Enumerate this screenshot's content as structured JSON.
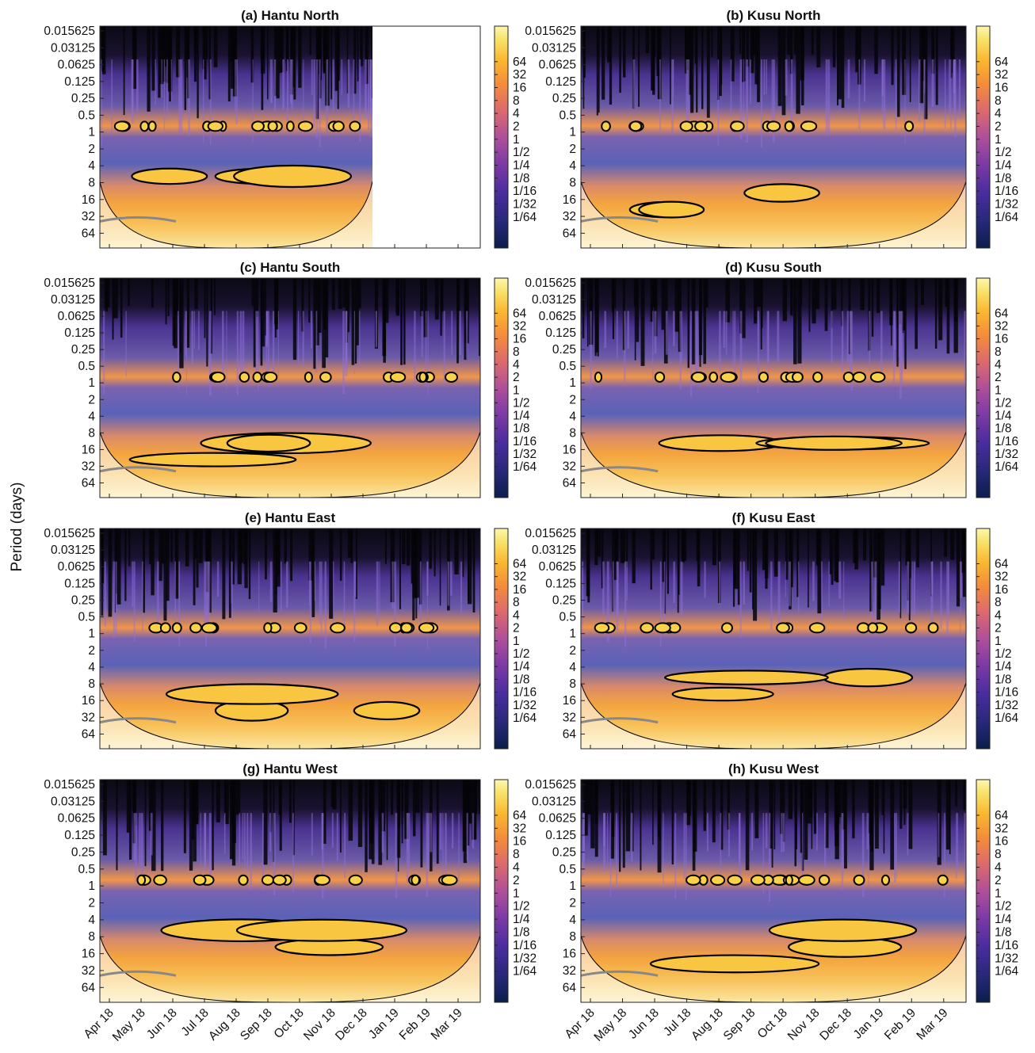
{
  "figure": {
    "ylabel": "Period (days)",
    "xticks": [
      "Apr 18",
      "May 18",
      "Jun 18",
      "Jul 18",
      "Aug 18",
      "Sep 18",
      "Oct 18",
      "Nov 18",
      "Dec 18",
      "Jan 19",
      "Feb 19",
      "Mar 19"
    ],
    "yticks": [
      "0.015625",
      "0.03125",
      "0.0625",
      "0.125",
      "0.25",
      "0.5",
      "1",
      "2",
      "4",
      "8",
      "16",
      "32",
      "64"
    ],
    "colorbar_ticks": [
      "64",
      "32",
      "16",
      "8",
      "4",
      "2",
      "1",
      "1/2",
      "1/4",
      "1/8",
      "1/16",
      "1/32",
      "1/64"
    ],
    "colormap": [
      "#0b1d4d",
      "#27287a",
      "#4a2c9e",
      "#7d3aa6",
      "#b04f9a",
      "#dc6a6c",
      "#f48d3a",
      "#fbb830",
      "#f7e36a",
      "#fdf7b0"
    ]
  },
  "chart_data": [
    {
      "type": "heatmap",
      "title": "(a) Hantu North",
      "ylabel": "Period (days)",
      "x_range": [
        "Apr 18",
        "Mar 19"
      ],
      "data_end": "Dec 18",
      "y_range": [
        0.015625,
        64
      ],
      "y_scale": "log2",
      "power_scale": "log2",
      "contour": "significance"
    },
    {
      "type": "heatmap",
      "title": "(b) Kusu North",
      "ylabel": "Period (days)",
      "x_range": [
        "Apr 18",
        "Mar 19"
      ],
      "data_end": "Mar 19",
      "y_range": [
        0.015625,
        64
      ],
      "y_scale": "log2",
      "power_scale": "log2",
      "contour": "significance"
    },
    {
      "type": "heatmap",
      "title": "(c) Hantu South",
      "ylabel": "Period (days)",
      "x_range": [
        "Apr 18",
        "Mar 19"
      ],
      "data_end": "Mar 19",
      "y_range": [
        0.015625,
        64
      ],
      "y_scale": "log2",
      "power_scale": "log2",
      "contour": "significance"
    },
    {
      "type": "heatmap",
      "title": "(d) Kusu South",
      "ylabel": "Period (days)",
      "x_range": [
        "Apr 18",
        "Mar 19"
      ],
      "data_end": "Mar 19",
      "y_range": [
        0.015625,
        64
      ],
      "y_scale": "log2",
      "power_scale": "log2",
      "contour": "significance"
    },
    {
      "type": "heatmap",
      "title": "(e) Hantu East",
      "ylabel": "Period (days)",
      "x_range": [
        "Apr 18",
        "Mar 19"
      ],
      "data_end": "Mar 19",
      "y_range": [
        0.015625,
        64
      ],
      "y_scale": "log2",
      "power_scale": "log2",
      "contour": "significance"
    },
    {
      "type": "heatmap",
      "title": "(f) Kusu East",
      "ylabel": "Period (days)",
      "x_range": [
        "Apr 18",
        "Mar 19"
      ],
      "data_end": "Mar 19",
      "y_range": [
        0.015625,
        64
      ],
      "y_scale": "log2",
      "power_scale": "log2",
      "contour": "significance"
    },
    {
      "type": "heatmap",
      "title": "(g) Hantu West",
      "ylabel": "Period (days)",
      "x_range": [
        "Apr 18",
        "Mar 19"
      ],
      "data_end": "Mar 19",
      "y_range": [
        0.015625,
        64
      ],
      "y_scale": "log2",
      "power_scale": "log2",
      "contour": "significance"
    },
    {
      "type": "heatmap",
      "title": "(h) Kusu West",
      "ylabel": "Period (days)",
      "x_range": [
        "Apr 18",
        "Mar 19"
      ],
      "data_end": "Mar 19",
      "y_range": [
        0.015625,
        64
      ],
      "y_scale": "log2",
      "power_scale": "log2",
      "contour": "significance"
    }
  ]
}
